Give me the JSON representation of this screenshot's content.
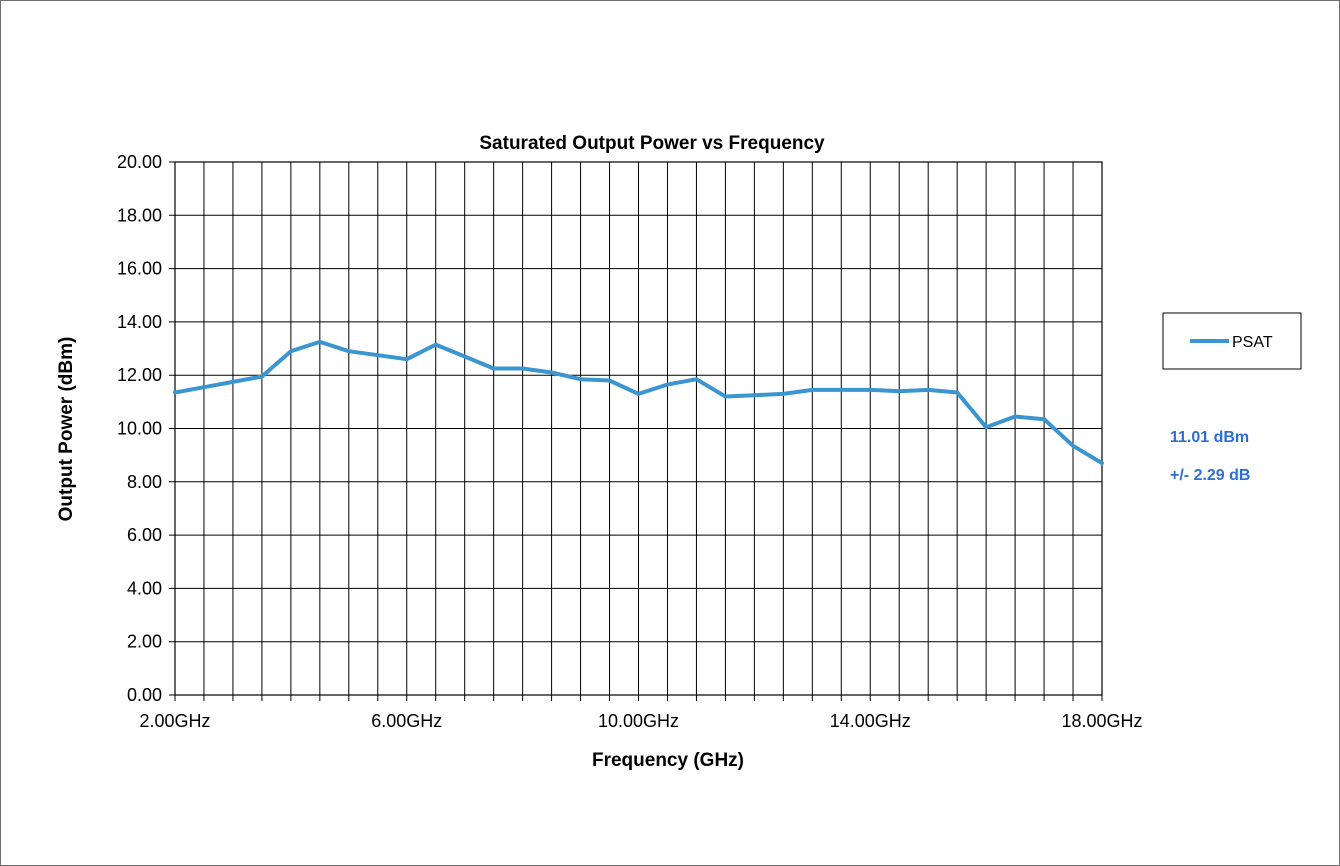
{
  "chart_data": {
    "type": "line",
    "title": "Saturated Output Power vs Frequency",
    "xlabel": "Frequency (GHz)",
    "ylabel": "Output Power (dBm)",
    "xlim": [
      2.0,
      18.0
    ],
    "ylim": [
      0.0,
      20.0
    ],
    "xticks": [
      2,
      6,
      10,
      14,
      18
    ],
    "xtick_labels": [
      "2.00GHz",
      "6.00GHz",
      "10.00GHz",
      "14.00GHz",
      "18.00GHz"
    ],
    "yticks": [
      0,
      2,
      4,
      6,
      8,
      10,
      12,
      14,
      16,
      18,
      20
    ],
    "ytick_labels": [
      "0.00",
      "2.00",
      "4.00",
      "6.00",
      "8.00",
      "10.00",
      "12.00",
      "14.00",
      "16.00",
      "18.00",
      "20.00"
    ],
    "grid": true,
    "vertical_gridlines": 32,
    "legend_position": "right",
    "line_color": "#3b95d0",
    "series": [
      {
        "name": "PSAT",
        "x": [
          2.0,
          2.5,
          3.0,
          3.5,
          4.0,
          4.5,
          5.0,
          5.5,
          6.0,
          6.5,
          7.0,
          7.5,
          8.0,
          8.5,
          9.0,
          9.5,
          10.0,
          10.5,
          11.0,
          11.5,
          12.0,
          12.5,
          13.0,
          13.5,
          14.0,
          14.5,
          15.0,
          15.5,
          16.0,
          16.5,
          17.0,
          17.5,
          18.0
        ],
        "values": [
          11.35,
          11.55,
          11.75,
          11.95,
          12.9,
          13.25,
          12.9,
          12.75,
          12.6,
          13.15,
          12.7,
          12.25,
          12.25,
          12.1,
          11.85,
          11.8,
          11.3,
          11.65,
          11.85,
          11.2,
          11.25,
          11.3,
          11.45,
          11.45,
          11.45,
          11.4,
          11.45,
          11.35,
          10.05,
          10.45,
          10.35,
          9.35,
          8.7
        ]
      }
    ]
  },
  "annotations": {
    "average": "11.01 dBm",
    "spread": "+/- 2.29 dB",
    "color": "#2e6fd6"
  }
}
